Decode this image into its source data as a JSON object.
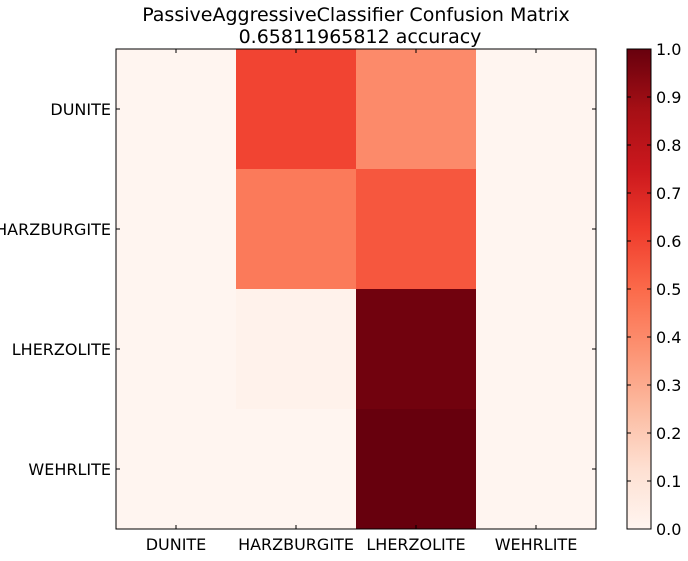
{
  "chart_data": {
    "type": "heatmap",
    "title": "PassiveAggressiveClassifier Confusion Matrix",
    "subtitle": "0.65811965812 accuracy",
    "rows": [
      "DUNITE",
      "HARZBURGITE",
      "LHERZOLITE",
      "WEHRLITE"
    ],
    "columns": [
      "DUNITE",
      "HARZBURGITE",
      "LHERZOLITE",
      "WEHRLITE"
    ],
    "values": [
      [
        0.0,
        0.6,
        0.4,
        0.0
      ],
      [
        0.0,
        0.45,
        0.55,
        0.0
      ],
      [
        0.0,
        0.02,
        0.98,
        0.0
      ],
      [
        0.0,
        0.0,
        1.0,
        0.0
      ]
    ],
    "colormap": "Reds",
    "colorbar": {
      "range": [
        0.0,
        1.0
      ],
      "ticks": [
        "0.0",
        "0.1",
        "0.2",
        "0.3",
        "0.4",
        "0.5",
        "0.6",
        "0.7",
        "0.8",
        "0.9",
        "1.0"
      ]
    },
    "colors": {
      "reds_stops": [
        "#fff5f0",
        "#fee0d2",
        "#fcbba1",
        "#fc9272",
        "#fb6a4a",
        "#ef3b2c",
        "#cb181d",
        "#a50f15",
        "#67000d"
      ]
    }
  }
}
